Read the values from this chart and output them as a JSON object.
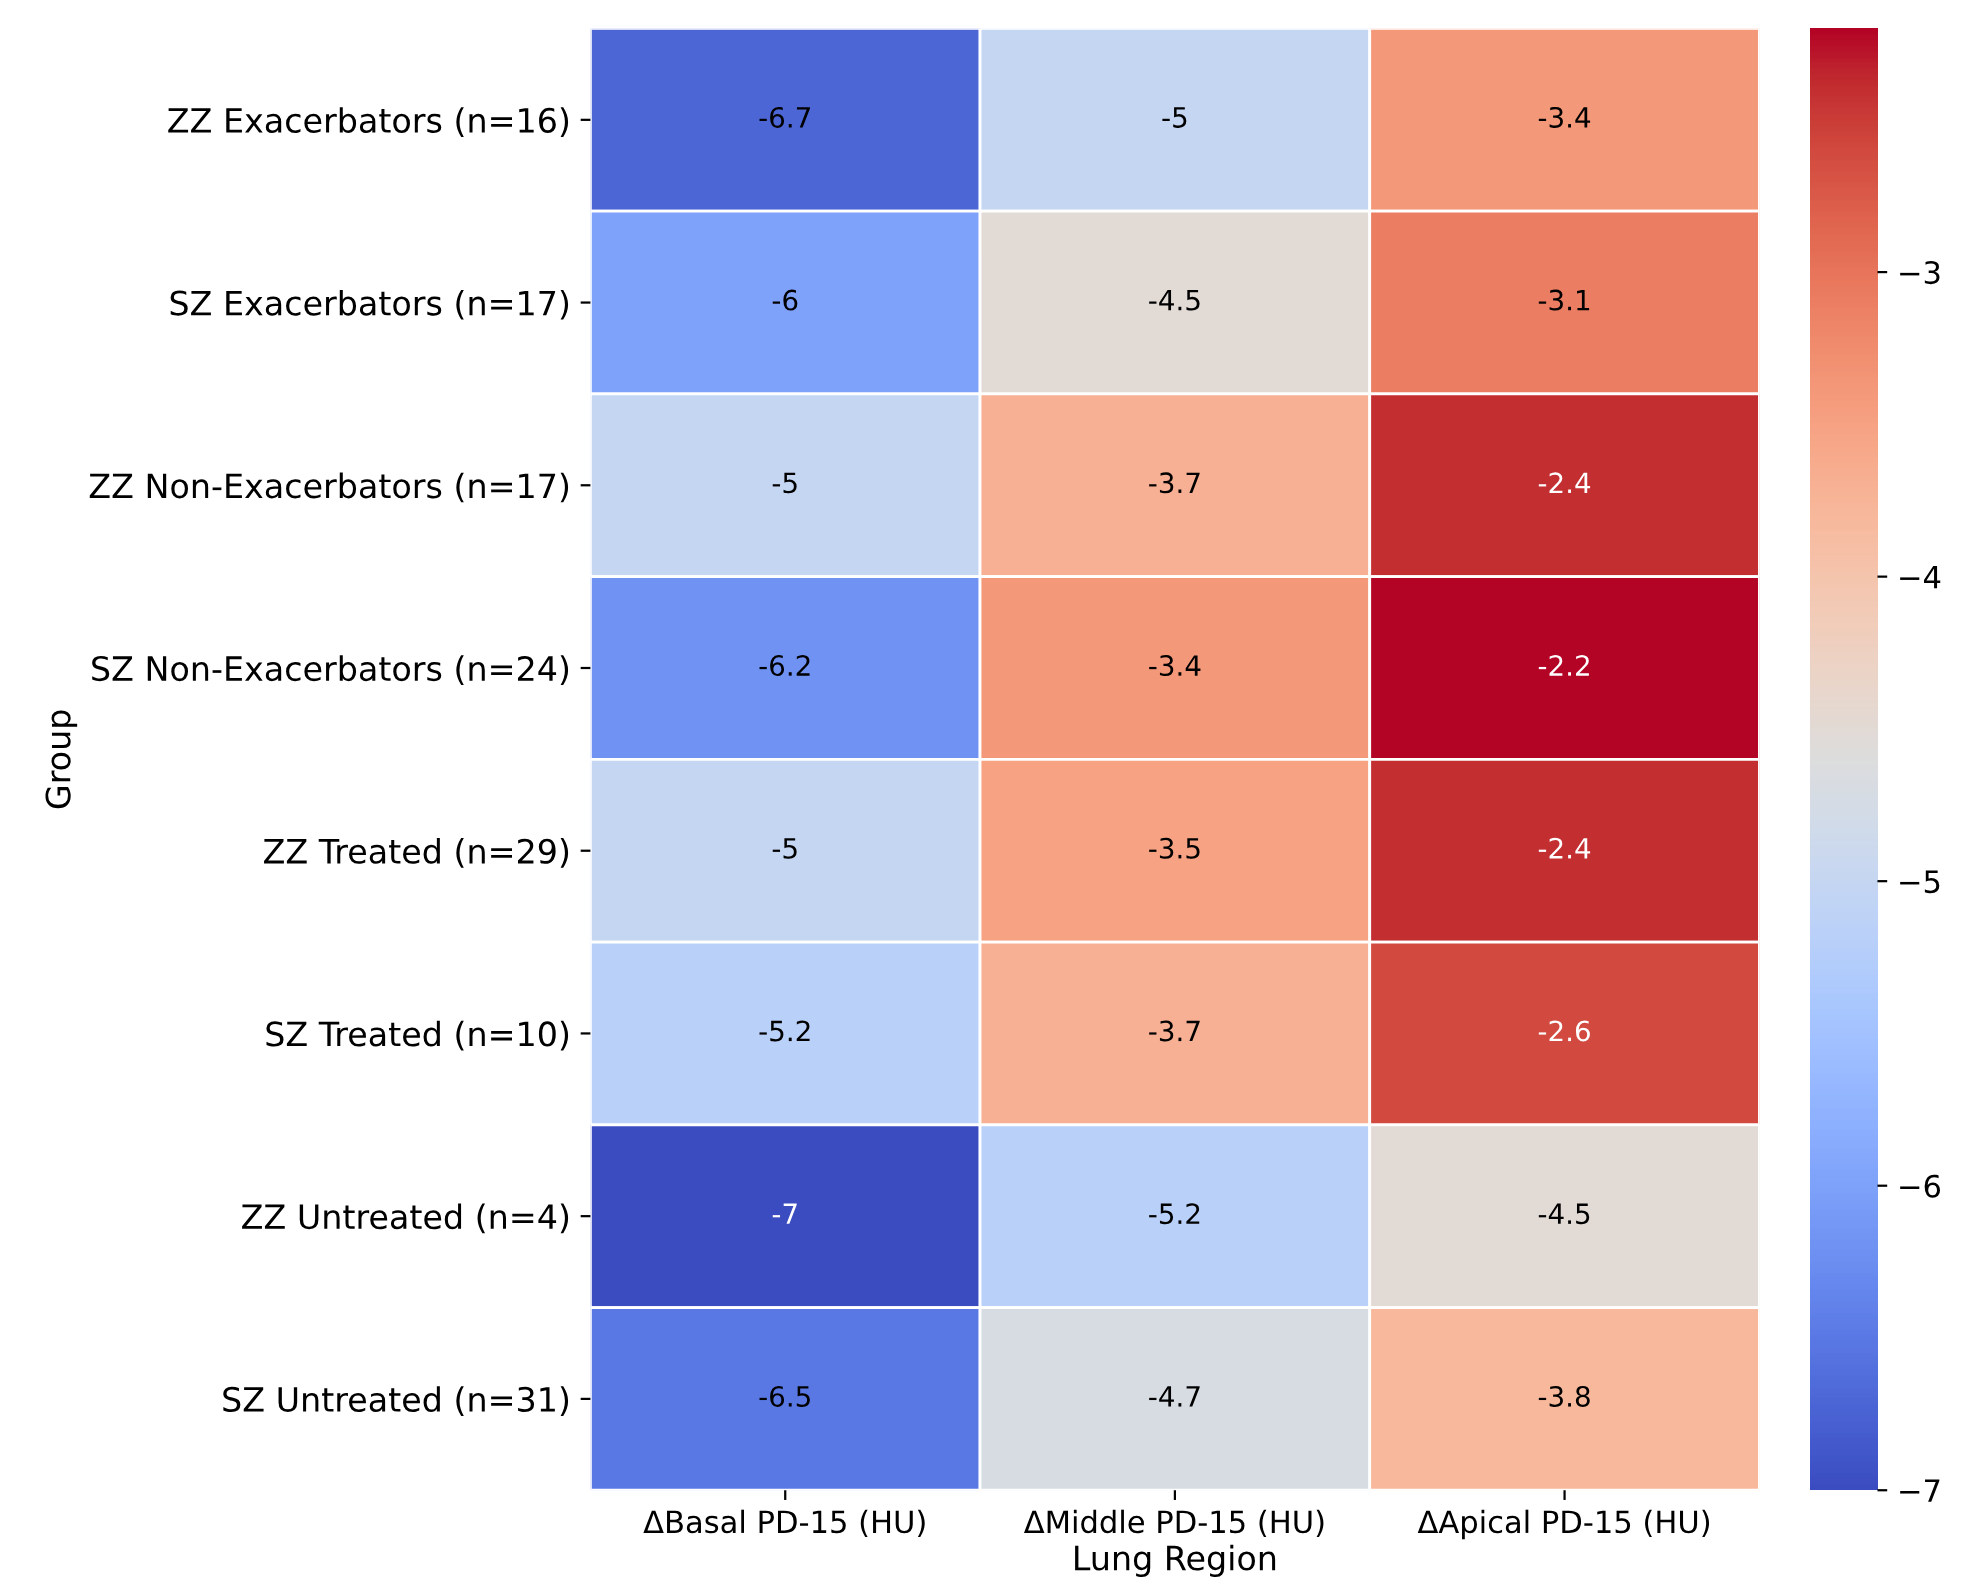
{
  "chart_data": {
    "type": "heatmap",
    "xlabel": "Lung Region",
    "ylabel": "Group",
    "categories": [
      "ΔBasal PD-15 (HU)",
      "ΔMiddle PD-15 (HU)",
      "ΔApical PD-15 (HU)"
    ],
    "y_categories": [
      "ZZ Exacerbators (n=16)",
      "SZ Exacerbators (n=17)",
      "ZZ Non-Exacerbators (n=17)",
      "SZ Non-Exacerbators (n=24)",
      "ZZ Treated (n=29)",
      "SZ Treated (n=10)",
      "ZZ Untreated (n=4)",
      "SZ Untreated (n=31)"
    ],
    "cells": [
      [
        -6.7,
        -5,
        -3.4
      ],
      [
        -6,
        -4.5,
        -3.1
      ],
      [
        -5,
        -3.7,
        -2.4
      ],
      [
        -6.2,
        -3.4,
        -2.2
      ],
      [
        -5,
        -3.5,
        -2.4
      ],
      [
        -5.2,
        -3.7,
        -2.6
      ],
      [
        -7,
        -5.2,
        -4.5
      ],
      [
        -6.5,
        -4.7,
        -3.8
      ]
    ],
    "data_labels": true,
    "clim": [
      -7,
      -2.2
    ],
    "cticks": [
      {
        "value": -3,
        "label": "−3"
      },
      {
        "value": -4,
        "label": "−4"
      },
      {
        "value": -5,
        "label": "−5"
      },
      {
        "value": -6,
        "label": "−6"
      },
      {
        "value": -7,
        "label": "−7"
      }
    ]
  }
}
